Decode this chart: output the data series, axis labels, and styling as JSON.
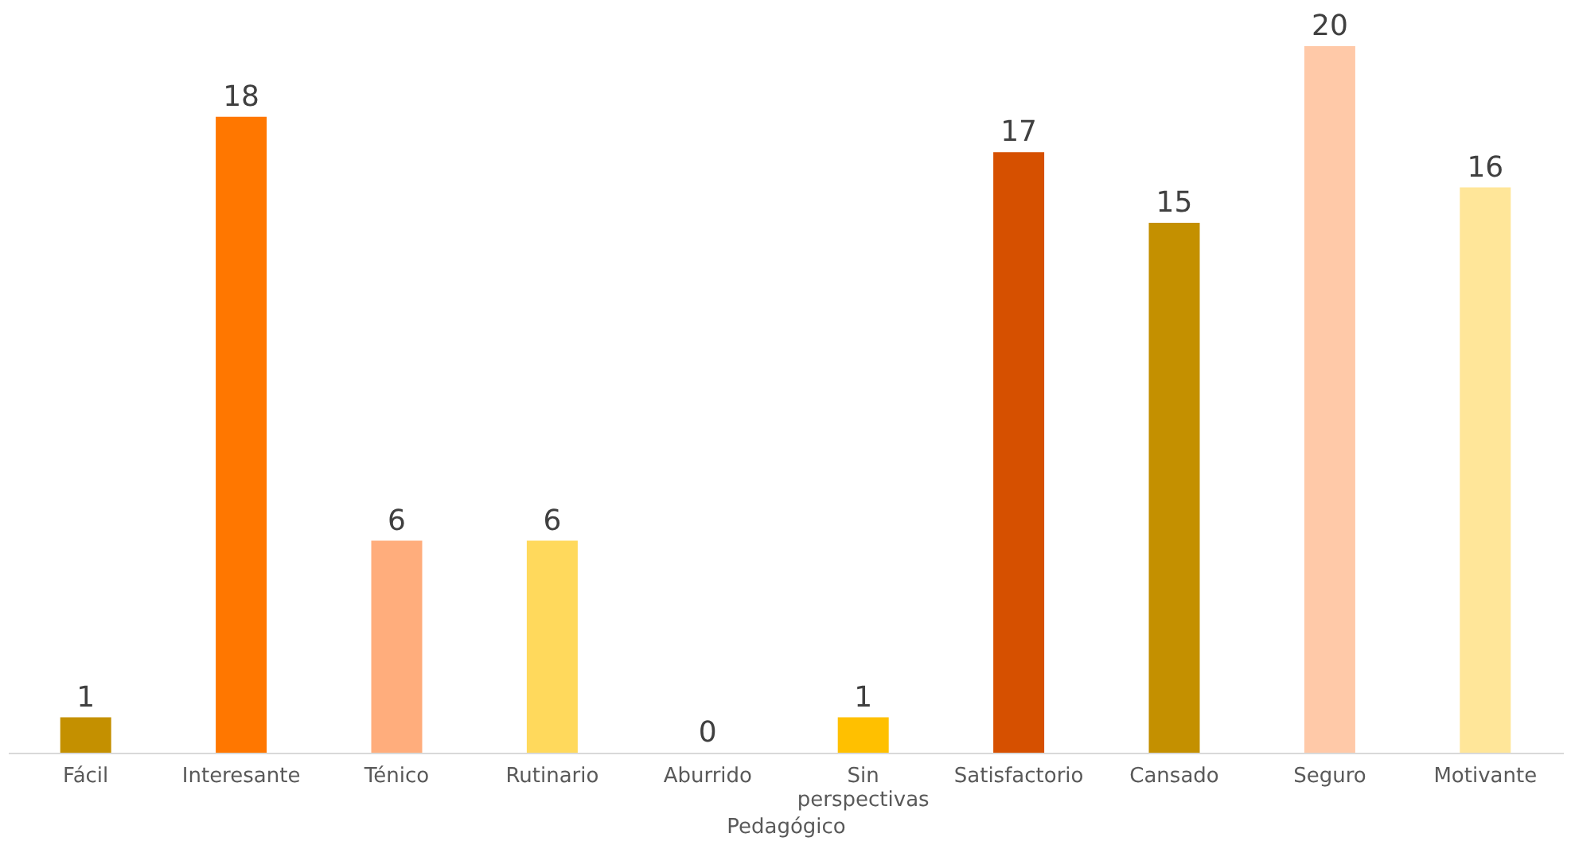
{
  "chart_data": {
    "type": "bar",
    "xlabel": "Pedagógico",
    "categories": [
      "Fácil",
      "Interesante",
      "Ténico",
      "Rutinario",
      "Aburrido",
      "Sin perspectivas",
      "Satisfactorio",
      "Cansado",
      "Seguro",
      "Motivante"
    ],
    "values": [
      1,
      18,
      6,
      6,
      0,
      1,
      17,
      15,
      20,
      16
    ],
    "colors": [
      "#c49000",
      "#ff7700",
      "#ffad7c",
      "#ffd95c",
      "#a5a5a5",
      "#ffc000",
      "#d65000",
      "#c49000",
      "#ffc9a8",
      "#ffe699"
    ],
    "data_labels": true
  }
}
